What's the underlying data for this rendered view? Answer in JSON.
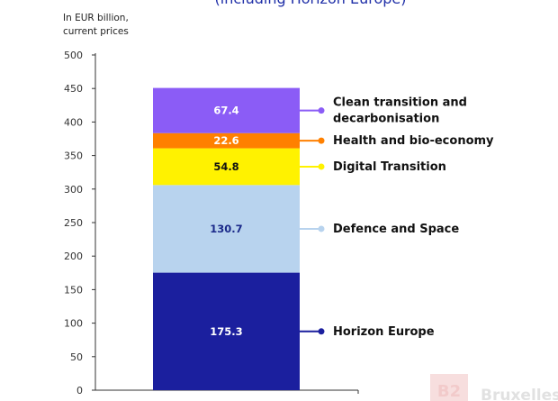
{
  "chart_data": {
    "type": "bar",
    "stacked": true,
    "title": "(including Horizon Europe)",
    "unit_label": [
      "In EUR billion,",
      "current prices"
    ],
    "ylim": [
      0,
      500
    ],
    "y_ticks": [
      0,
      50,
      100,
      150,
      200,
      250,
      300,
      350,
      400,
      450,
      500
    ],
    "categories": [
      ""
    ],
    "series": [
      {
        "name": "Horizon Europe",
        "values": [
          175.3
        ],
        "label": "175.3",
        "color": "#1b1f9e",
        "label_color": "#ffffff"
      },
      {
        "name": "Defence and Space",
        "values": [
          130.7
        ],
        "label": "130.7",
        "color": "#b8d3ee",
        "label_color": "#1b2a8a"
      },
      {
        "name": "Digital Transition",
        "values": [
          54.8
        ],
        "label": "54.8",
        "color": "#fff200",
        "label_color": "#111111"
      },
      {
        "name": "Health and bio-economy",
        "values": [
          22.6
        ],
        "label": "22.6",
        "color": "#ff8000",
        "label_color": "#ffffff"
      },
      {
        "name": "Clean transition and decarbonisation",
        "label_lines": [
          "Clean transition and",
          "decarbonisation"
        ],
        "values": [
          67.4
        ],
        "label": "67.4",
        "color": "#8b5cf6",
        "label_color": "#ffffff"
      }
    ],
    "legend_position": "right"
  },
  "watermark": {
    "text": "Bruxelles",
    "logo": "B2"
  }
}
